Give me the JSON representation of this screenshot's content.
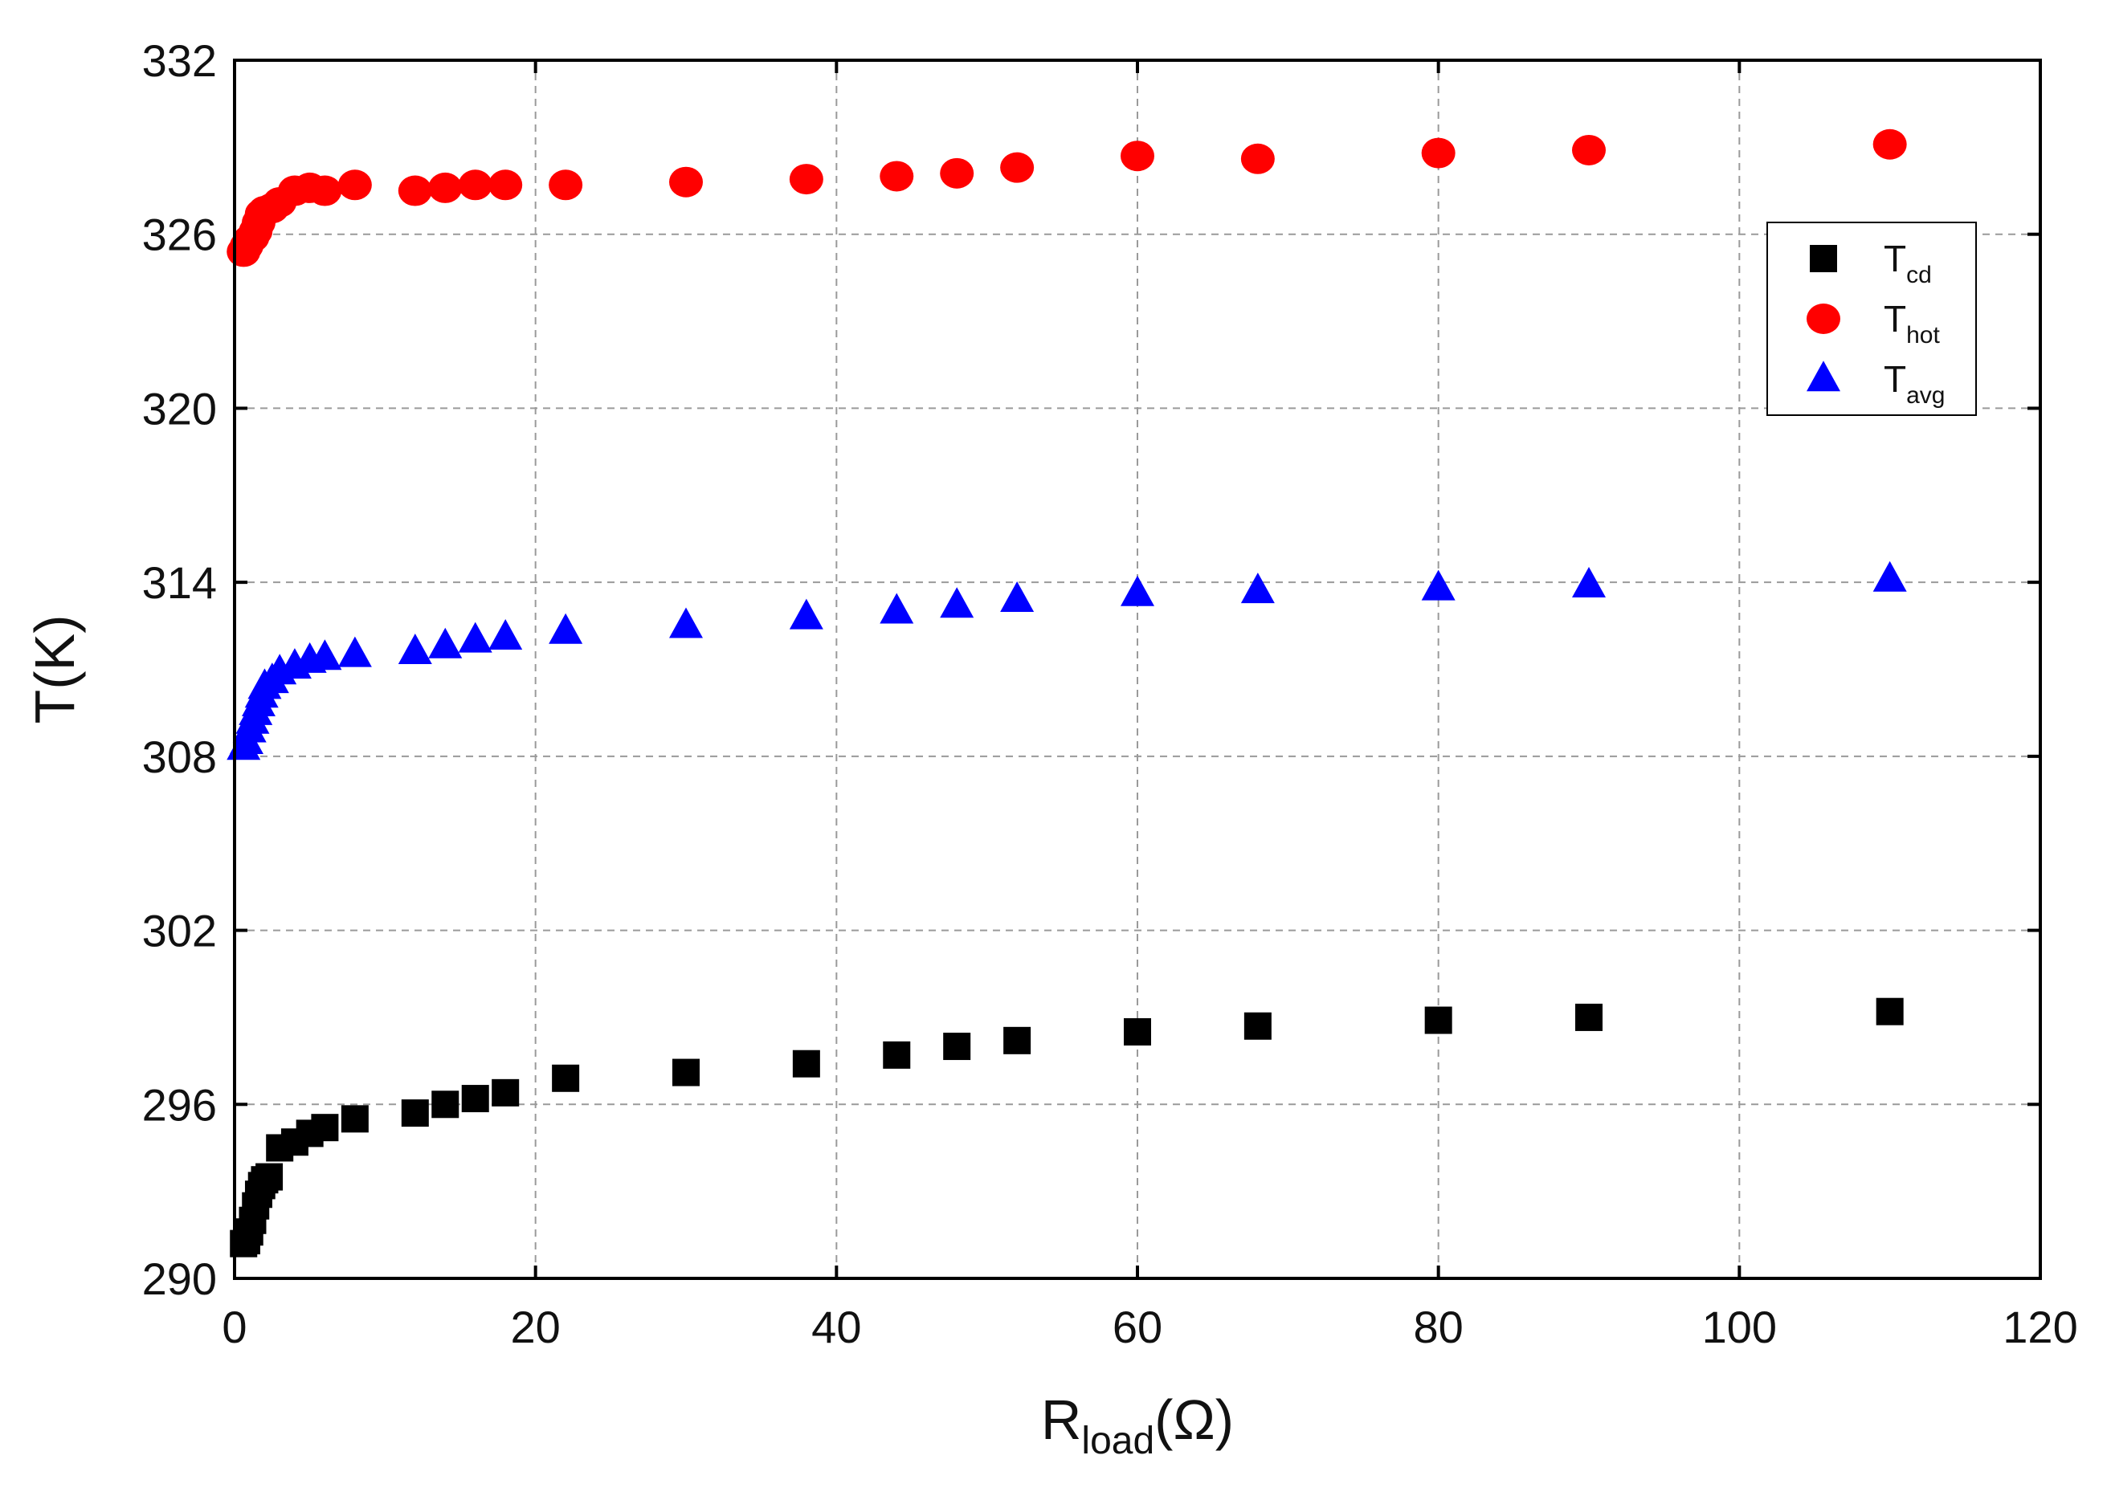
{
  "chart_data": {
    "type": "scatter",
    "title": "",
    "xlabel": {
      "main": "R",
      "sub": "load",
      "unit": "(Ω)"
    },
    "ylabel": "T(K)",
    "xlim": [
      0,
      120
    ],
    "ylim": [
      290,
      332
    ],
    "xticks": [
      0,
      20,
      40,
      60,
      80,
      100,
      120
    ],
    "yticks": [
      290,
      296,
      302,
      308,
      314,
      320,
      326,
      332
    ],
    "grid": true,
    "legend_position": "top-right",
    "series": [
      {
        "name": "T_cd",
        "legend_main": "T",
        "legend_sub": "cd",
        "marker": "square",
        "color": "#000000",
        "x": [
          0.6,
          0.8,
          1.0,
          1.2,
          1.4,
          1.6,
          1.8,
          2.0,
          2.3,
          3.0,
          4.0,
          5.0,
          6.0,
          8.0,
          12.0,
          14.0,
          16.0,
          18.0,
          22.0,
          30.0,
          38.0,
          44.0,
          48.0,
          52.0,
          60.0,
          68.0,
          80.0,
          90.0,
          110.0
        ],
        "y": [
          291.2,
          291.3,
          291.6,
          292.0,
          292.5,
          292.9,
          293.2,
          293.4,
          293.5,
          294.5,
          294.7,
          295.0,
          295.2,
          295.5,
          295.7,
          296.0,
          296.2,
          296.4,
          296.9,
          297.1,
          297.4,
          297.7,
          298.0,
          298.2,
          298.5,
          298.7,
          298.9,
          299.0,
          299.2
        ]
      },
      {
        "name": "T_hot",
        "legend_main": "T",
        "legend_sub": "hot",
        "marker": "circle",
        "color": "#ff0000",
        "x": [
          0.6,
          0.8,
          1.0,
          1.2,
          1.4,
          1.6,
          1.8,
          2.0,
          2.5,
          3.0,
          4.0,
          5.0,
          6.0,
          8.0,
          12.0,
          14.0,
          16.0,
          18.0,
          22.0,
          30.0,
          38.0,
          44.0,
          48.0,
          52.0,
          60.0,
          68.0,
          80.0,
          90.0,
          110.0
        ],
        "y": [
          325.4,
          325.6,
          325.8,
          325.9,
          326.1,
          326.4,
          326.7,
          326.8,
          326.9,
          327.1,
          327.5,
          327.6,
          327.5,
          327.7,
          327.5,
          327.6,
          327.7,
          327.7,
          327.7,
          327.8,
          327.9,
          328.0,
          328.1,
          328.3,
          328.7,
          328.6,
          328.8,
          328.9,
          329.1
        ]
      },
      {
        "name": "T_avg",
        "legend_main": "T",
        "legend_sub": "avg",
        "marker": "triangle",
        "color": "#0000ff",
        "x": [
          0.6,
          0.8,
          1.0,
          1.2,
          1.4,
          1.6,
          1.8,
          2.0,
          2.5,
          3.0,
          4.0,
          5.0,
          6.0,
          8.0,
          12.0,
          14.0,
          16.0,
          18.0,
          22.0,
          30.0,
          38.0,
          44.0,
          48.0,
          52.0,
          60.0,
          68.0,
          80.0,
          90.0,
          110.0
        ],
        "y": [
          308.3,
          308.5,
          308.9,
          309.2,
          309.5,
          309.8,
          310.1,
          310.4,
          310.6,
          310.9,
          311.1,
          311.3,
          311.4,
          311.5,
          311.6,
          311.8,
          312.0,
          312.1,
          312.3,
          312.5,
          312.8,
          313.0,
          313.2,
          313.4,
          313.6,
          313.7,
          313.8,
          313.9,
          314.1
        ]
      }
    ]
  }
}
